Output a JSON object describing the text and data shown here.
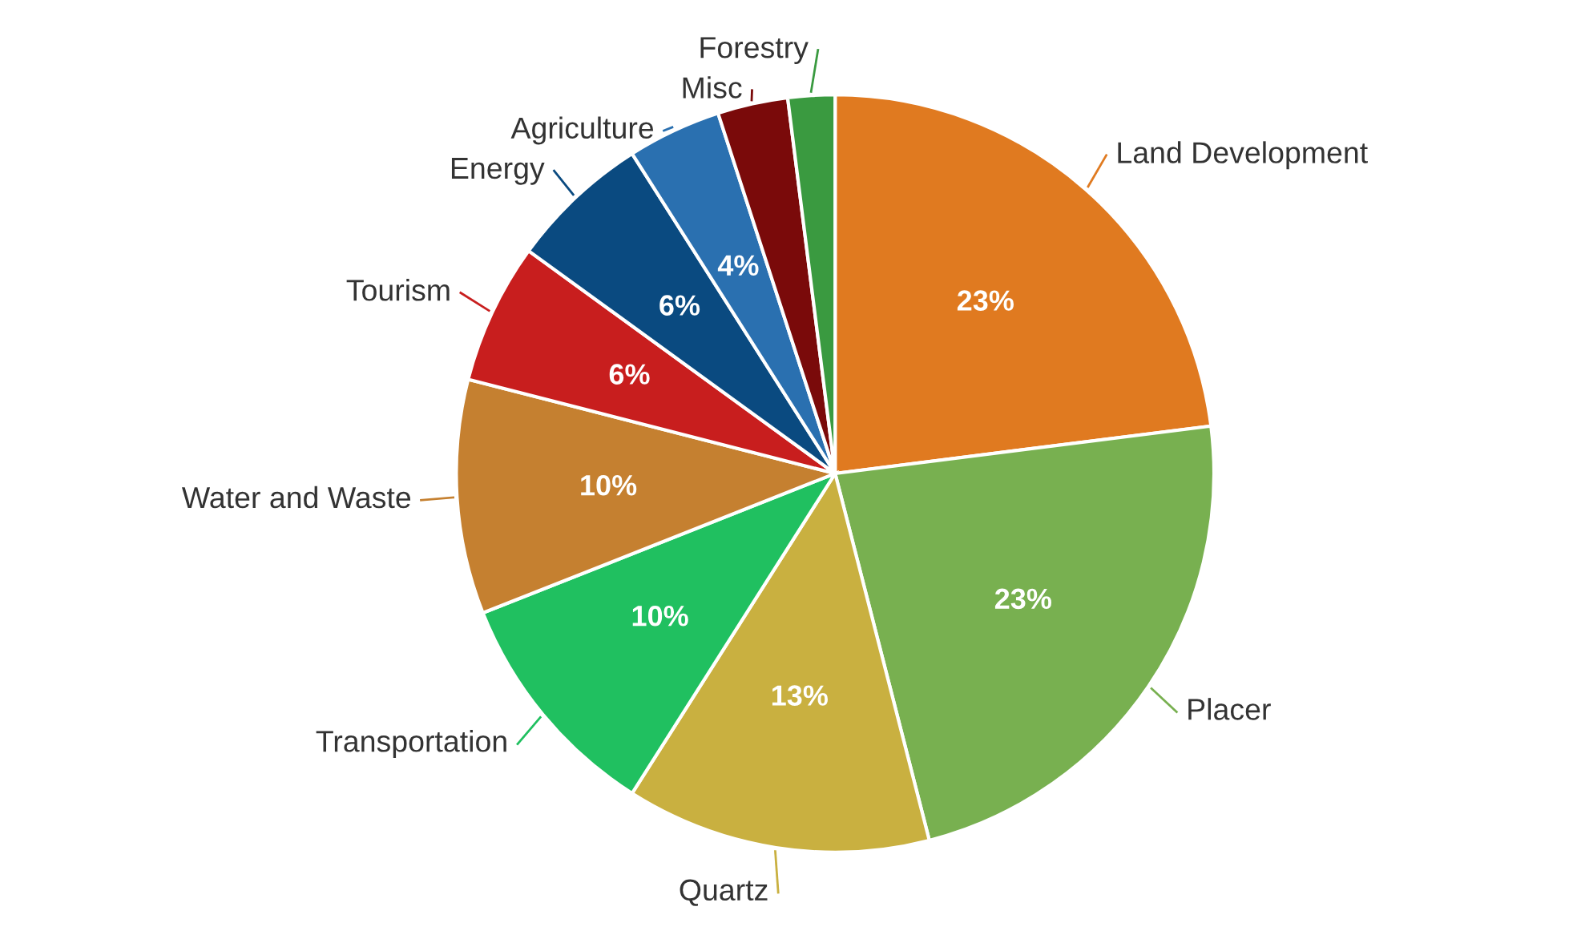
{
  "chart_data": {
    "type": "pie",
    "categories": [
      "Land Development",
      "Placer",
      "Quartz",
      "Transportation",
      "Water and Waste",
      "Tourism",
      "Energy",
      "Agriculture",
      "Misc",
      "Forestry"
    ],
    "values": [
      23,
      23,
      13,
      10,
      10,
      6,
      6,
      4,
      3,
      2
    ],
    "value_labels": [
      "23%",
      "23%",
      "13%",
      "10%",
      "10%",
      "6%",
      "6%",
      "4%",
      null,
      null
    ],
    "colors": [
      "#e07a20",
      "#78b050",
      "#c9b040",
      "#20c060",
      "#c58030",
      "#c81e1e",
      "#0a4a80",
      "#2a70b0",
      "#7a0a0a",
      "#3a9a40"
    ]
  }
}
